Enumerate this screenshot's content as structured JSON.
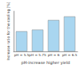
{
  "chart_data": {
    "type": "bar",
    "x_label": "pH-increase higher yield",
    "y_label": "Increase ratio for the cooling [%]",
    "categories": [
      "pH = 5.5",
      "pH = 5.75",
      "pH = 6",
      "pH = 6.5"
    ],
    "values": [
      50,
      54,
      78,
      87
    ],
    "color": "#a9d6f0",
    "ylim": [
      0,
      100
    ],
    "grid": false,
    "tick_labels": "x"
  }
}
